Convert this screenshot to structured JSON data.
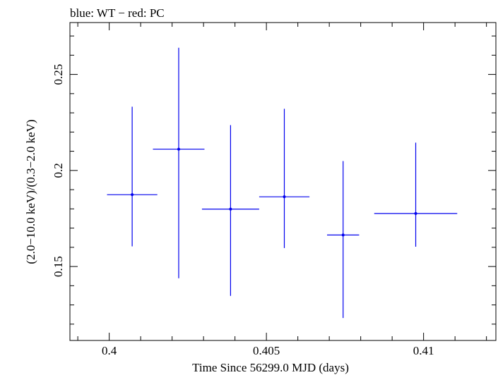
{
  "chart_data": {
    "type": "scatter",
    "title": "blue: WT − red: PC",
    "xlabel": "Time Since 56299.0 MJD (days)",
    "ylabel": "(2.0−10.0 keV)/(0.3−2.0 keV)",
    "xlim": [
      0.39875,
      0.4123
    ],
    "ylim": [
      0.1115,
      0.277
    ],
    "x_ticks": [
      0.4,
      0.405,
      0.41
    ],
    "x_tick_labels": [
      "0.4",
      "0.405",
      "0.41"
    ],
    "y_ticks": [
      0.15,
      0.2,
      0.25
    ],
    "y_tick_labels": [
      "0.15",
      "0.2",
      "0.25"
    ],
    "grid": false,
    "series": [
      {
        "name": "WT",
        "color": "#0000ee",
        "points": [
          {
            "x": 0.40073,
            "xerr": 0.0008,
            "y": 0.1874,
            "ylo": 0.1605,
            "yhi": 0.2332
          },
          {
            "x": 0.40221,
            "xerr": 0.00082,
            "y": 0.2111,
            "ylo": 0.1439,
            "yhi": 0.2639
          },
          {
            "x": 0.40386,
            "xerr": 0.00091,
            "y": 0.1799,
            "ylo": 0.1347,
            "yhi": 0.2236
          },
          {
            "x": 0.40557,
            "xerr": 0.0008,
            "y": 0.1863,
            "ylo": 0.1596,
            "yhi": 0.2321
          },
          {
            "x": 0.40744,
            "xerr": 0.00051,
            "y": 0.1664,
            "ylo": 0.1232,
            "yhi": 0.2049
          },
          {
            "x": 0.40975,
            "xerr": 0.00132,
            "y": 0.1776,
            "ylo": 0.1603,
            "yhi": 0.2145
          }
        ]
      }
    ]
  }
}
